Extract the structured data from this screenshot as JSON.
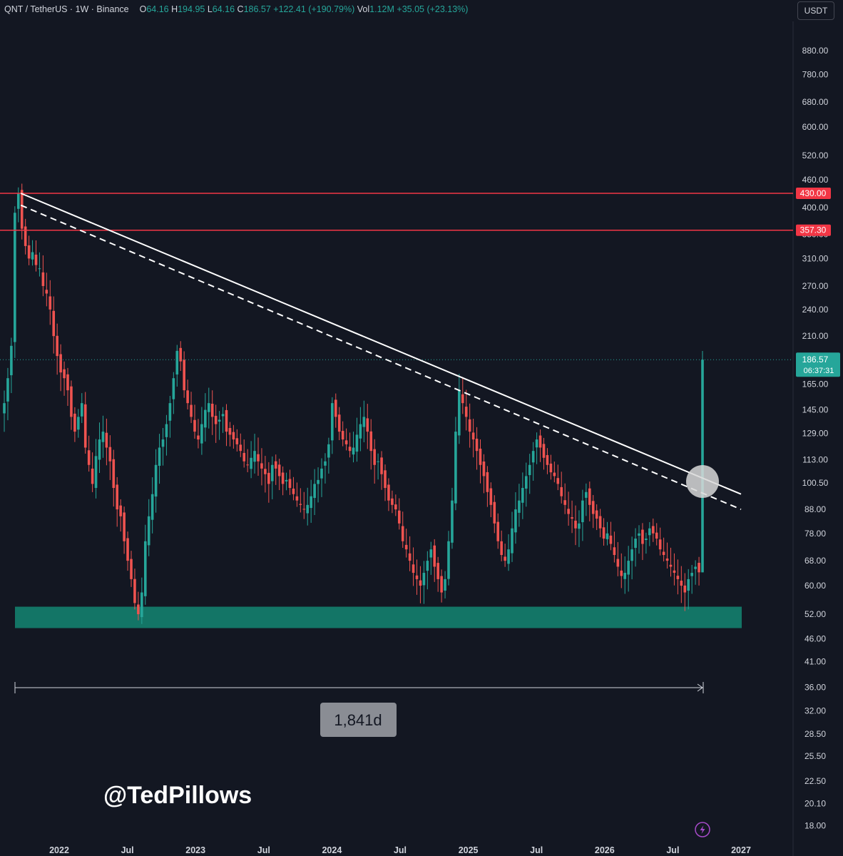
{
  "header": {
    "symbol": "QNT / TetherUS · 1W · Binance",
    "o_label": "O",
    "o": "64.16",
    "h_label": "H",
    "h": "194.95",
    "l_label": "L",
    "l": "64.16",
    "c_label": "C",
    "c": "186.57",
    "change": "+122.41 (+190.79%)",
    "vol_label": "Vol",
    "vol": "1.12M",
    "vol_change": "+35.05 (+23.13%)"
  },
  "currency_button": "USDT",
  "watermark": "@TedPillows",
  "measure_label": "1,841d",
  "colors": {
    "up": "#26a69a",
    "down": "#ef5350",
    "level": "#f23645",
    "zone": "#137566",
    "background": "#131722"
  },
  "icons": {
    "alert": "lightning-icon"
  },
  "chart_data": {
    "type": "candlestick",
    "y_scale": "log",
    "ylim": [
      17,
      1020
    ],
    "y_ticks": [
      "880.00",
      "780.00",
      "680.00",
      "600.00",
      "520.00",
      "460.00",
      "400.00",
      "350.00",
      "310.00",
      "270.00",
      "240.00",
      "210.00",
      "165.00",
      "145.00",
      "129.00",
      "113.00",
      "100.50",
      "88.00",
      "78.00",
      "68.00",
      "60.00",
      "52.00",
      "46.00",
      "41.00",
      "36.00",
      "32.00",
      "28.50",
      "25.50",
      "22.50",
      "20.10",
      "18.00"
    ],
    "x_ticks": [
      "2022",
      "Jul",
      "2023",
      "Jul",
      "2024",
      "Jul",
      "2025",
      "Jul",
      "2026",
      "Jul",
      "2027"
    ],
    "price_labels": [
      {
        "value": "430.00",
        "price": 430
      },
      {
        "value": "357.30",
        "price": 357.3
      }
    ],
    "last_price": {
      "value": "186.57",
      "countdown": "06:37:31",
      "price": 186.57
    },
    "horizontal_levels": [
      430,
      357.3
    ],
    "support_zone": [
      48.5,
      54
    ],
    "trendlines": [
      {
        "style": "solid",
        "from": [
          "2021-09",
          430
        ],
        "to": [
          "2027-01",
          95
        ]
      },
      {
        "style": "dashed",
        "from": [
          "2021-09",
          405
        ],
        "to": [
          "2027-01",
          88
        ]
      }
    ],
    "closes": [
      150,
      170,
      200,
      390,
      430,
      360,
      330,
      310,
      320,
      300,
      295,
      270,
      260,
      240,
      210,
      190,
      175,
      170,
      160,
      140,
      130,
      140,
      150,
      120,
      110,
      100,
      115,
      125,
      130,
      120,
      112,
      98,
      88,
      85,
      75,
      68,
      62,
      55,
      52,
      58,
      75,
      85,
      95,
      110,
      120,
      125,
      135,
      150,
      170,
      195,
      185,
      160,
      150,
      140,
      130,
      125,
      135,
      145,
      150,
      140,
      135,
      138,
      142,
      130,
      128,
      125,
      122,
      118,
      112,
      110,
      114,
      118,
      112,
      108,
      105,
      100,
      110,
      108,
      104,
      100,
      102,
      98,
      95,
      92,
      90,
      88,
      90,
      94,
      100,
      102,
      108,
      112,
      122,
      150,
      140,
      130,
      125,
      122,
      118,
      120,
      128,
      135,
      140,
      130,
      118,
      110,
      112,
      105,
      98,
      92,
      90,
      88,
      82,
      75,
      72,
      68,
      64,
      62,
      60,
      64,
      68,
      72,
      66,
      62,
      58,
      62,
      75,
      92,
      130,
      160,
      150,
      140,
      130,
      125,
      118,
      110,
      104,
      96,
      90,
      82,
      75,
      70,
      68,
      72,
      80,
      88,
      92,
      98,
      104,
      110,
      118,
      125,
      120,
      114,
      110,
      106,
      104,
      100,
      94,
      90,
      86,
      84,
      80,
      82,
      92,
      96,
      90,
      86,
      84,
      80,
      76,
      78,
      74,
      70,
      66,
      63,
      64,
      68,
      72,
      76,
      78,
      74,
      76,
      80,
      78,
      76,
      72,
      70,
      68,
      66,
      64,
      62,
      60,
      58,
      62,
      64,
      66,
      64.16,
      186.57
    ]
  }
}
